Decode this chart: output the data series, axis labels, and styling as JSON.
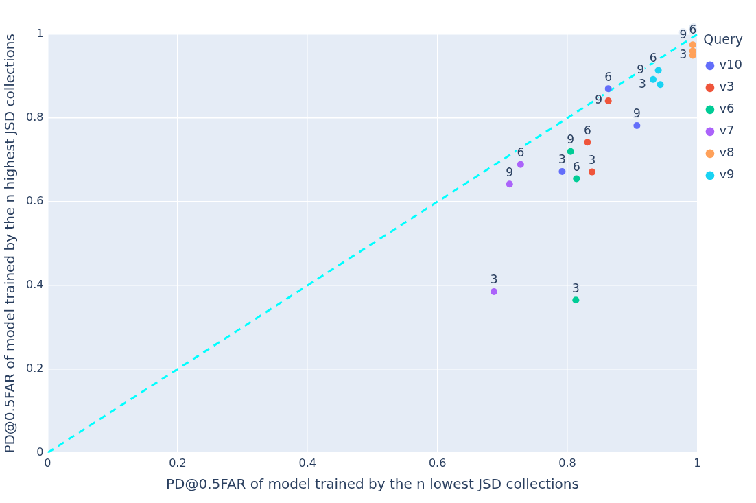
{
  "chart_data": {
    "type": "scatter",
    "xlabel": "PD@0.5FAR of model trained by the n lowest JSD collections",
    "ylabel": "PD@0.5FAR of model trained by the n highest JSD collections",
    "legend_title": "Query",
    "legend": "right",
    "grid": true,
    "marker": "circle",
    "xlim": [
      0,
      1
    ],
    "ylim": [
      0,
      1
    ],
    "xticks": [
      0,
      0.2,
      0.4,
      0.6,
      0.8,
      1
    ],
    "yticks": [
      0,
      0.2,
      0.4,
      0.6,
      0.8,
      1
    ],
    "series": [
      {
        "name": "v10",
        "color": "#636efa",
        "x": [
          0.792,
          0.863,
          0.907
        ],
        "values": [
          0.672,
          0.87,
          0.782
        ]
      },
      {
        "name": "v3",
        "color": "#ef553b",
        "x": [
          0.838,
          0.831,
          0.863
        ],
        "values": [
          0.671,
          0.742,
          0.841
        ]
      },
      {
        "name": "v6",
        "color": "#00cc96",
        "x": [
          0.813,
          0.814,
          0.805
        ],
        "values": [
          0.365,
          0.655,
          0.72
        ]
      },
      {
        "name": "v7",
        "color": "#ab63fa",
        "x": [
          0.687,
          0.728,
          0.711
        ],
        "values": [
          0.385,
          0.689,
          0.642
        ]
      },
      {
        "name": "v8",
        "color": "#ffa15a",
        "x": [
          0.993,
          0.993,
          0.993
        ],
        "values": [
          0.95,
          0.96,
          0.975
        ]
      },
      {
        "name": "v9",
        "color": "#19d3f3",
        "x": [
          0.943,
          0.932,
          0.94
        ],
        "values": [
          0.88,
          0.892,
          0.914
        ]
      },
      {
        "type": "line",
        "color": "#00ffff",
        "line_style": "dashed",
        "marker": "none",
        "x": [
          0,
          1
        ],
        "values": [
          0,
          1
        ]
      }
    ],
    "annotations": [
      {
        "text": "3",
        "x": 0.792,
        "y": 0.672
      },
      {
        "text": "6",
        "x": 0.863,
        "y": 0.87
      },
      {
        "text": "9",
        "x": 0.907,
        "y": 0.782
      },
      {
        "text": "3",
        "x": 0.838,
        "y": 0.671
      },
      {
        "text": "6",
        "x": 0.831,
        "y": 0.742
      },
      {
        "text": "9",
        "x": 0.863,
        "y": 0.841
      },
      {
        "text": "3",
        "x": 0.813,
        "y": 0.365
      },
      {
        "text": "6",
        "x": 0.814,
        "y": 0.655
      },
      {
        "text": "9",
        "x": 0.805,
        "y": 0.72
      },
      {
        "text": "3",
        "x": 0.687,
        "y": 0.385
      },
      {
        "text": "6",
        "x": 0.728,
        "y": 0.689
      },
      {
        "text": "9",
        "x": 0.711,
        "y": 0.642
      },
      {
        "text": "3",
        "x": 0.993,
        "y": 0.95
      },
      {
        "text": "6",
        "x": 0.993,
        "y": 0.96
      },
      {
        "text": "9",
        "x": 0.993,
        "y": 0.975
      },
      {
        "text": "3",
        "x": 0.943,
        "y": 0.88
      },
      {
        "text": "6",
        "x": 0.932,
        "y": 0.892
      },
      {
        "text": "9",
        "x": 0.94,
        "y": 0.914
      }
    ]
  }
}
